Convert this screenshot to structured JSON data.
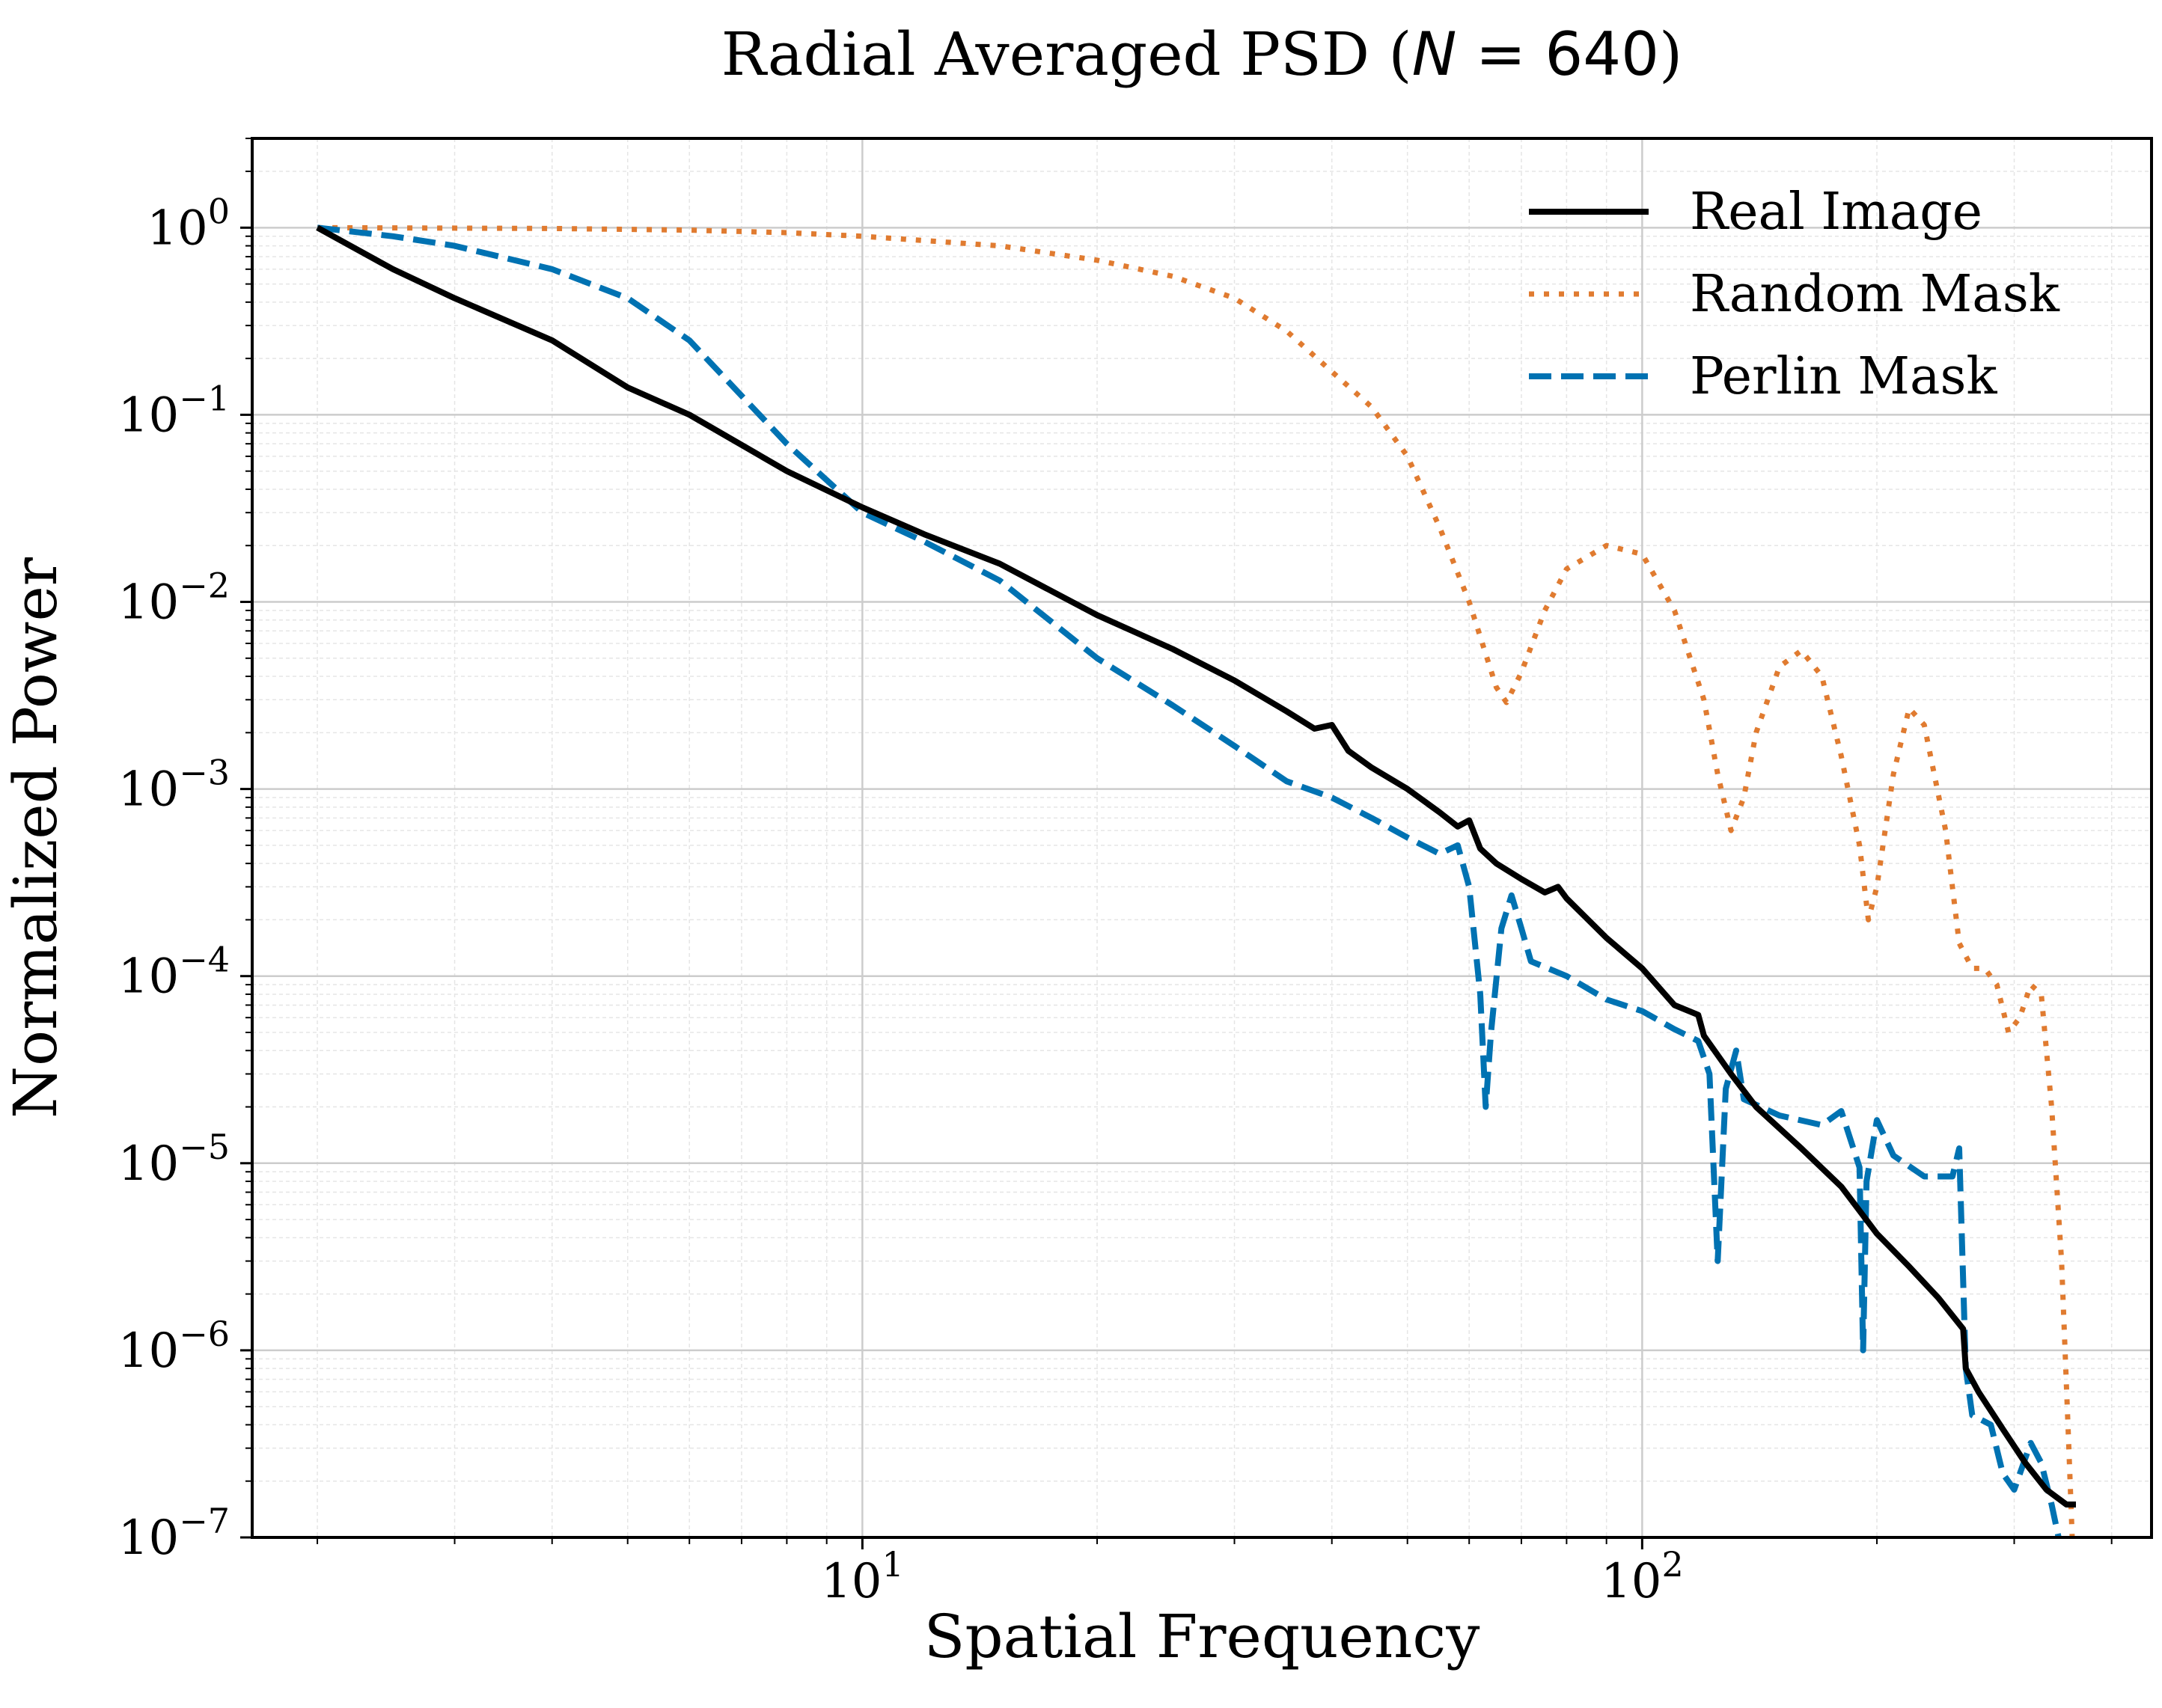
{
  "chart_data": {
    "type": "line",
    "title_prefix": "Radial Averaged PSD (",
    "title_var": "N",
    "title_eq": " = 640",
    "title_suffix": ")",
    "xlabel": "Spatial Frequency",
    "ylabel": "Normalized Power",
    "xscale": "log",
    "yscale": "log",
    "xlim": [
      1.65,
      450
    ],
    "ylim": [
      1e-07,
      3
    ],
    "grid": true,
    "legend_position": "top-right",
    "x_ticks": [
      {
        "value": 10,
        "base": "10",
        "exp": "1"
      },
      {
        "value": 100,
        "base": "10",
        "exp": "2"
      }
    ],
    "y_ticks": [
      {
        "value": 1,
        "base": "10",
        "exp": "0"
      },
      {
        "value": 0.1,
        "base": "10",
        "exp": "−1"
      },
      {
        "value": 0.01,
        "base": "10",
        "exp": "−2"
      },
      {
        "value": 0.001,
        "base": "10",
        "exp": "−3"
      },
      {
        "value": 0.0001,
        "base": "10",
        "exp": "−4"
      },
      {
        "value": 1e-05,
        "base": "10",
        "exp": "−5"
      },
      {
        "value": 1e-06,
        "base": "10",
        "exp": "−6"
      },
      {
        "value": 1e-07,
        "base": "10",
        "exp": "−7"
      }
    ],
    "series": [
      {
        "name": "Real Image",
        "color": "#000000",
        "style": "solid",
        "points": [
          [
            2,
            1.0
          ],
          [
            2.5,
            0.6
          ],
          [
            3,
            0.42
          ],
          [
            4,
            0.25
          ],
          [
            5,
            0.14
          ],
          [
            6,
            0.1
          ],
          [
            8,
            0.05
          ],
          [
            10,
            0.032
          ],
          [
            12,
            0.023
          ],
          [
            15,
            0.016
          ],
          [
            20,
            0.0085
          ],
          [
            25,
            0.0056
          ],
          [
            30,
            0.0038
          ],
          [
            35,
            0.0026
          ],
          [
            38,
            0.0021
          ],
          [
            40,
            0.0022
          ],
          [
            42,
            0.0016
          ],
          [
            45,
            0.0013
          ],
          [
            50,
            0.001
          ],
          [
            55,
            0.00075
          ],
          [
            58,
            0.00063
          ],
          [
            60,
            0.00068
          ],
          [
            62,
            0.00048
          ],
          [
            65,
            0.0004
          ],
          [
            70,
            0.00033
          ],
          [
            75,
            0.00028
          ],
          [
            78,
            0.0003
          ],
          [
            80,
            0.00026
          ],
          [
            90,
            0.00016
          ],
          [
            100,
            0.00011
          ],
          [
            110,
            7e-05
          ],
          [
            118,
            6.2e-05
          ],
          [
            120,
            4.8e-05
          ],
          [
            130,
            3e-05
          ],
          [
            140,
            2e-05
          ],
          [
            160,
            1.2e-05
          ],
          [
            180,
            7.5e-06
          ],
          [
            200,
            4.2e-06
          ],
          [
            220,
            2.8e-06
          ],
          [
            240,
            1.9e-06
          ],
          [
            258,
            1.3e-06
          ],
          [
            260,
            8e-07
          ],
          [
            270,
            6e-07
          ],
          [
            290,
            3.8e-07
          ],
          [
            310,
            2.5e-07
          ],
          [
            330,
            1.8e-07
          ],
          [
            350,
            1.5e-07
          ],
          [
            360,
            1.5e-07
          ]
        ]
      },
      {
        "name": "Random Mask",
        "color": "#E07B30",
        "style": "dotted",
        "points": [
          [
            2,
            1.0
          ],
          [
            4,
            0.99
          ],
          [
            6,
            0.97
          ],
          [
            8,
            0.94
          ],
          [
            10,
            0.9
          ],
          [
            15,
            0.8
          ],
          [
            20,
            0.67
          ],
          [
            25,
            0.55
          ],
          [
            30,
            0.42
          ],
          [
            35,
            0.28
          ],
          [
            40,
            0.17
          ],
          [
            45,
            0.11
          ],
          [
            50,
            0.06
          ],
          [
            55,
            0.025
          ],
          [
            60,
            0.01
          ],
          [
            65,
            0.0035
          ],
          [
            67,
            0.0029
          ],
          [
            70,
            0.0042
          ],
          [
            75,
            0.009
          ],
          [
            80,
            0.015
          ],
          [
            90,
            0.02
          ],
          [
            100,
            0.018
          ],
          [
            110,
            0.009
          ],
          [
            120,
            0.003
          ],
          [
            125,
            0.0012
          ],
          [
            130,
            0.0006
          ],
          [
            135,
            0.0009
          ],
          [
            140,
            0.002
          ],
          [
            150,
            0.0045
          ],
          [
            160,
            0.0055
          ],
          [
            170,
            0.004
          ],
          [
            180,
            0.0015
          ],
          [
            190,
            0.0005
          ],
          [
            195,
            0.0002
          ],
          [
            200,
            0.0003
          ],
          [
            210,
            0.0012
          ],
          [
            220,
            0.0027
          ],
          [
            230,
            0.0022
          ],
          [
            245,
            0.0006
          ],
          [
            255,
            0.00015
          ],
          [
            265,
            0.00011
          ],
          [
            275,
            0.00011
          ],
          [
            285,
            9e-05
          ],
          [
            295,
            5e-05
          ],
          [
            305,
            6e-05
          ],
          [
            315,
            9e-05
          ],
          [
            325,
            8e-05
          ],
          [
            335,
            2e-05
          ],
          [
            345,
            3e-06
          ],
          [
            352,
            3.5e-07
          ],
          [
            356,
            1e-07
          ]
        ]
      },
      {
        "name": "Perlin Mask",
        "color": "#0072B2",
        "style": "dashed",
        "points": [
          [
            2,
            1.0
          ],
          [
            2.5,
            0.9
          ],
          [
            3,
            0.8
          ],
          [
            4,
            0.6
          ],
          [
            5,
            0.42
          ],
          [
            6,
            0.25
          ],
          [
            8,
            0.07
          ],
          [
            10,
            0.03
          ],
          [
            12,
            0.021
          ],
          [
            15,
            0.013
          ],
          [
            20,
            0.005
          ],
          [
            25,
            0.0028
          ],
          [
            30,
            0.0017
          ],
          [
            35,
            0.0011
          ],
          [
            40,
            0.0009
          ],
          [
            45,
            0.0007
          ],
          [
            50,
            0.00055
          ],
          [
            55,
            0.00045
          ],
          [
            58,
            0.0005
          ],
          [
            60,
            0.0003
          ],
          [
            62,
            8e-05
          ],
          [
            63,
            2e-05
          ],
          [
            64,
            5e-05
          ],
          [
            66,
            0.00018
          ],
          [
            68,
            0.00027
          ],
          [
            70,
            0.00018
          ],
          [
            72,
            0.00012
          ],
          [
            80,
            0.0001
          ],
          [
            90,
            7.5e-05
          ],
          [
            100,
            6.5e-05
          ],
          [
            110,
            5.2e-05
          ],
          [
            118,
            4.5e-05
          ],
          [
            122,
            3e-05
          ],
          [
            125,
            3e-06
          ],
          [
            128,
            2.5e-05
          ],
          [
            132,
            4e-05
          ],
          [
            135,
            2.2e-05
          ],
          [
            150,
            1.8e-05
          ],
          [
            170,
            1.6e-05
          ],
          [
            180,
            1.9e-05
          ],
          [
            190,
            9.5e-06
          ],
          [
            192,
            1e-06
          ],
          [
            194,
            8e-06
          ],
          [
            200,
            1.7e-05
          ],
          [
            210,
            1.1e-05
          ],
          [
            230,
            8.5e-06
          ],
          [
            250,
            8.5e-06
          ],
          [
            255,
            1.2e-05
          ],
          [
            260,
            8e-07
          ],
          [
            265,
            4.5e-07
          ],
          [
            280,
            4e-07
          ],
          [
            290,
            2.2e-07
          ],
          [
            300,
            1.8e-07
          ],
          [
            315,
            3.2e-07
          ],
          [
            325,
            2.5e-07
          ],
          [
            335,
            1.5e-07
          ],
          [
            342,
            1e-07
          ]
        ]
      }
    ]
  }
}
